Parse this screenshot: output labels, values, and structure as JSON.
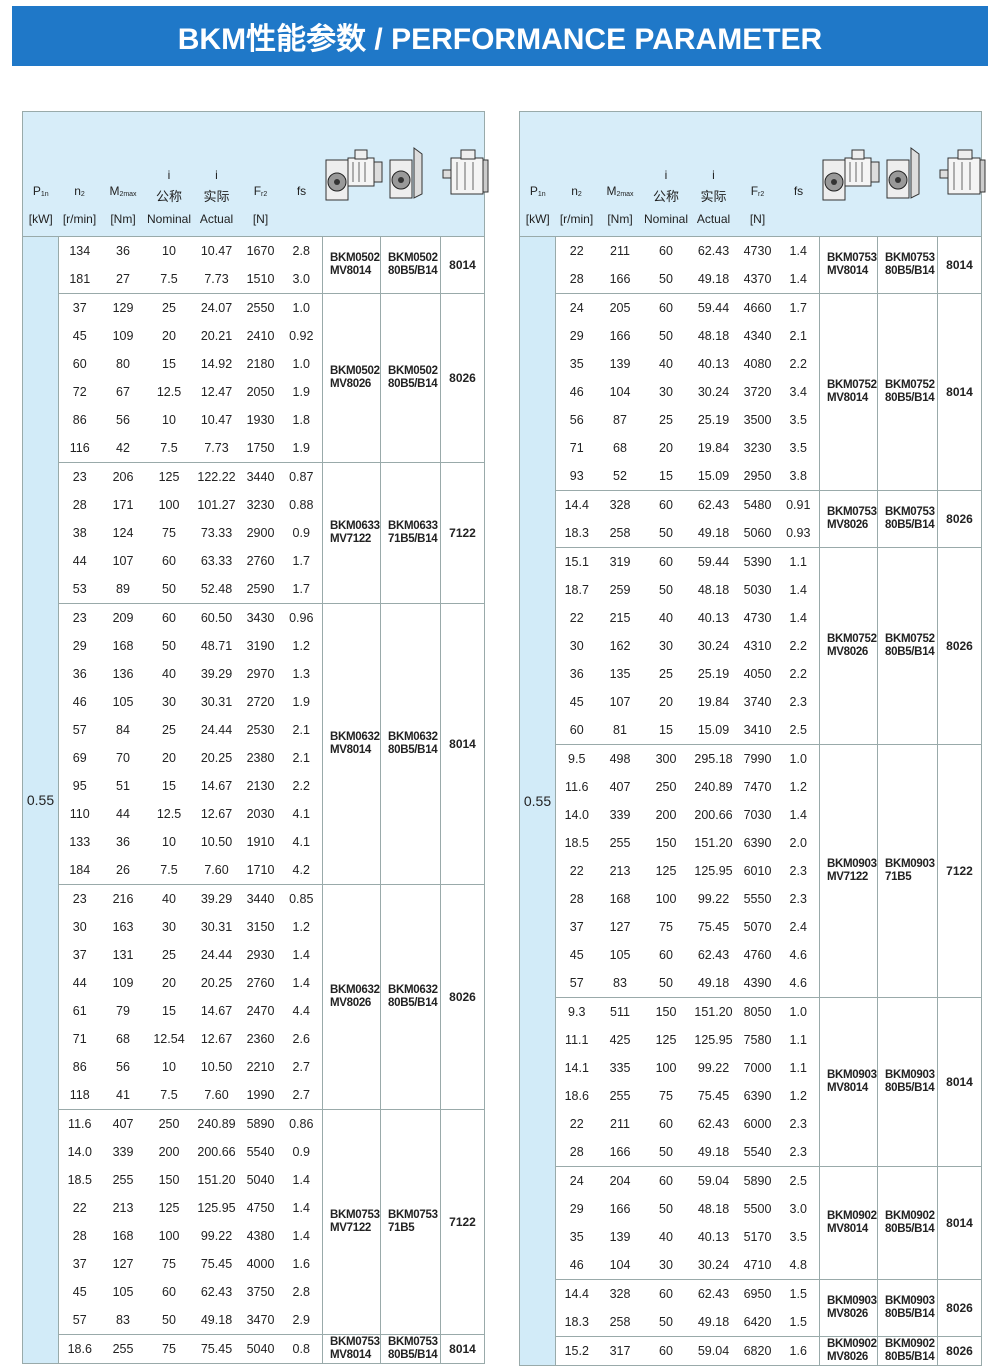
{
  "title": "BKM性能参数 / PERFORMANCE PARAMETER",
  "colors": {
    "banner": "#1f78c8",
    "header_bg": "#d7edf9",
    "power_col_bg": "#d2ebf8"
  },
  "header": {
    "p": {
      "main": "P",
      "sub": "1n",
      "unit": "[kW]"
    },
    "n2": {
      "main": "n",
      "sub": "2",
      "unit": "[r/min]"
    },
    "m2": {
      "main": "M",
      "sub": "2max",
      "unit": "[Nm]"
    },
    "i_nominal": {
      "top": "i",
      "cn": "公称",
      "en": "Nominal"
    },
    "i_actual": {
      "top": "i",
      "cn": "实际",
      "en": "Actual"
    },
    "fr2": {
      "main": "F",
      "sub": "r2",
      "unit": "[N]"
    },
    "fs": "fs",
    "icons": [
      "gearbox-with-motor-icon",
      "gearbox-with-flange-icon",
      "motor-icon"
    ]
  },
  "tables": [
    {
      "power": "0.55",
      "groups": [
        {
          "model1": [
            "BKM0502",
            "MV8014"
          ],
          "model2": [
            "BKM0502",
            "80B5/B14"
          ],
          "motor": "8014",
          "rows": [
            [
              "134",
              "36",
              "10",
              "10.47",
              "1670",
              "2.8"
            ],
            [
              "181",
              "27",
              "7.5",
              "7.73",
              "1510",
              "3.0"
            ]
          ]
        },
        {
          "model1": [
            "BKM0502",
            "MV8026"
          ],
          "model2": [
            "BKM0502",
            "80B5/B14"
          ],
          "motor": "8026",
          "rows": [
            [
              "37",
              "129",
              "25",
              "24.07",
              "2550",
              "1.0"
            ],
            [
              "45",
              "109",
              "20",
              "20.21",
              "2410",
              "0.92"
            ],
            [
              "60",
              "80",
              "15",
              "14.92",
              "2180",
              "1.0"
            ],
            [
              "72",
              "67",
              "12.5",
              "12.47",
              "2050",
              "1.9"
            ],
            [
              "86",
              "56",
              "10",
              "10.47",
              "1930",
              "1.8"
            ],
            [
              "116",
              "42",
              "7.5",
              "7.73",
              "1750",
              "1.9"
            ]
          ]
        },
        {
          "model1": [
            "BKM0633",
            "MV7122"
          ],
          "model2": [
            "BKM0633",
            "71B5/B14"
          ],
          "motor": "7122",
          "rows": [
            [
              "23",
              "206",
              "125",
              "122.22",
              "3440",
              "0.87"
            ],
            [
              "28",
              "171",
              "100",
              "101.27",
              "3230",
              "0.88"
            ],
            [
              "38",
              "124",
              "75",
              "73.33",
              "2900",
              "0.9"
            ],
            [
              "44",
              "107",
              "60",
              "63.33",
              "2760",
              "1.7"
            ],
            [
              "53",
              "89",
              "50",
              "52.48",
              "2590",
              "1.7"
            ]
          ]
        },
        {
          "model1": [
            "BKM0632",
            "MV8014"
          ],
          "model2": [
            "BKM0632",
            "80B5/B14"
          ],
          "motor": "8014",
          "rows": [
            [
              "23",
              "209",
              "60",
              "60.50",
              "3430",
              "0.96"
            ],
            [
              "29",
              "168",
              "50",
              "48.71",
              "3190",
              "1.2"
            ],
            [
              "36",
              "136",
              "40",
              "39.29",
              "2970",
              "1.3"
            ],
            [
              "46",
              "105",
              "30",
              "30.31",
              "2720",
              "1.9"
            ],
            [
              "57",
              "84",
              "25",
              "24.44",
              "2530",
              "2.1"
            ],
            [
              "69",
              "70",
              "20",
              "20.25",
              "2380",
              "2.1"
            ],
            [
              "95",
              "51",
              "15",
              "14.67",
              "2130",
              "2.2"
            ],
            [
              "110",
              "44",
              "12.5",
              "12.67",
              "2030",
              "4.1"
            ],
            [
              "133",
              "36",
              "10",
              "10.50",
              "1910",
              "4.1"
            ],
            [
              "184",
              "26",
              "7.5",
              "7.60",
              "1710",
              "4.2"
            ]
          ]
        },
        {
          "model1": [
            "BKM0632",
            "MV8026"
          ],
          "model2": [
            "BKM0632",
            "80B5/B14"
          ],
          "motor": "8026",
          "rows": [
            [
              "23",
              "216",
              "40",
              "39.29",
              "3440",
              "0.85"
            ],
            [
              "30",
              "163",
              "30",
              "30.31",
              "3150",
              "1.2"
            ],
            [
              "37",
              "131",
              "25",
              "24.44",
              "2930",
              "1.4"
            ],
            [
              "44",
              "109",
              "20",
              "20.25",
              "2760",
              "1.4"
            ],
            [
              "61",
              "79",
              "15",
              "14.67",
              "2470",
              "4.4"
            ],
            [
              "71",
              "68",
              "12.54",
              "12.67",
              "2360",
              "2.6"
            ],
            [
              "86",
              "56",
              "10",
              "10.50",
              "2210",
              "2.7"
            ],
            [
              "118",
              "41",
              "7.5",
              "7.60",
              "1990",
              "2.7"
            ]
          ]
        },
        {
          "model1": [
            "BKM0753",
            "MV7122"
          ],
          "model2": [
            "BKM0753",
            "71B5"
          ],
          "motor": "7122",
          "rows": [
            [
              "11.6",
              "407",
              "250",
              "240.89",
              "5890",
              "0.86"
            ],
            [
              "14.0",
              "339",
              "200",
              "200.66",
              "5540",
              "0.9"
            ],
            [
              "18.5",
              "255",
              "150",
              "151.20",
              "5040",
              "1.4"
            ],
            [
              "22",
              "213",
              "125",
              "125.95",
              "4750",
              "1.4"
            ],
            [
              "28",
              "168",
              "100",
              "99.22",
              "4380",
              "1.4"
            ],
            [
              "37",
              "127",
              "75",
              "75.45",
              "4000",
              "1.6"
            ],
            [
              "45",
              "105",
              "60",
              "62.43",
              "3750",
              "2.8"
            ],
            [
              "57",
              "83",
              "50",
              "49.18",
              "3470",
              "2.9"
            ]
          ]
        },
        {
          "model1": [
            "BKM0753",
            "MV8014"
          ],
          "model2": [
            "BKM0753",
            "80B5/B14"
          ],
          "motor": "8014",
          "rows": [
            [
              "18.6",
              "255",
              "75",
              "75.45",
              "5040",
              "0.8"
            ]
          ]
        }
      ]
    },
    {
      "power": "0.55",
      "groups": [
        {
          "model1": [
            "BKM0753",
            "MV8014"
          ],
          "model2": [
            "BKM0753",
            "80B5/B14"
          ],
          "motor": "8014",
          "rows": [
            [
              "22",
              "211",
              "60",
              "62.43",
              "4730",
              "1.4"
            ],
            [
              "28",
              "166",
              "50",
              "49.18",
              "4370",
              "1.4"
            ]
          ]
        },
        {
          "model1": [
            "BKM0752",
            "MV8014"
          ],
          "model2": [
            "BKM0752",
            "80B5/B14"
          ],
          "motor": "8014",
          "rows": [
            [
              "24",
              "205",
              "60",
              "59.44",
              "4660",
              "1.7"
            ],
            [
              "29",
              "166",
              "50",
              "48.18",
              "4340",
              "2.1"
            ],
            [
              "35",
              "139",
              "40",
              "40.13",
              "4080",
              "2.2"
            ],
            [
              "46",
              "104",
              "30",
              "30.24",
              "3720",
              "3.4"
            ],
            [
              "56",
              "87",
              "25",
              "25.19",
              "3500",
              "3.5"
            ],
            [
              "71",
              "68",
              "20",
              "19.84",
              "3230",
              "3.5"
            ],
            [
              "93",
              "52",
              "15",
              "15.09",
              "2950",
              "3.8"
            ]
          ]
        },
        {
          "model1": [
            "BKM0753",
            "MV8026"
          ],
          "model2": [
            "BKM0753",
            "80B5/B14"
          ],
          "motor": "8026",
          "rows": [
            [
              "14.4",
              "328",
              "60",
              "62.43",
              "5480",
              "0.91"
            ],
            [
              "18.3",
              "258",
              "50",
              "49.18",
              "5060",
              "0.93"
            ]
          ]
        },
        {
          "model1": [
            "BKM0752",
            "MV8026"
          ],
          "model2": [
            "BKM0752",
            "80B5/B14"
          ],
          "motor": "8026",
          "rows": [
            [
              "15.1",
              "319",
              "60",
              "59.44",
              "5390",
              "1.1"
            ],
            [
              "18.7",
              "259",
              "50",
              "48.18",
              "5030",
              "1.4"
            ],
            [
              "22",
              "215",
              "40",
              "40.13",
              "4730",
              "1.4"
            ],
            [
              "30",
              "162",
              "30",
              "30.24",
              "4310",
              "2.2"
            ],
            [
              "36",
              "135",
              "25",
              "25.19",
              "4050",
              "2.2"
            ],
            [
              "45",
              "107",
              "20",
              "19.84",
              "3740",
              "2.3"
            ],
            [
              "60",
              "81",
              "15",
              "15.09",
              "3410",
              "2.5"
            ]
          ]
        },
        {
          "model1": [
            "BKM0903",
            "MV7122"
          ],
          "model2": [
            "BKM0903",
            "71B5"
          ],
          "motor": "7122",
          "rows": [
            [
              "9.5",
              "498",
              "300",
              "295.18",
              "7990",
              "1.0"
            ],
            [
              "11.6",
              "407",
              "250",
              "240.89",
              "7470",
              "1.2"
            ],
            [
              "14.0",
              "339",
              "200",
              "200.66",
              "7030",
              "1.4"
            ],
            [
              "18.5",
              "255",
              "150",
              "151.20",
              "6390",
              "2.0"
            ],
            [
              "22",
              "213",
              "125",
              "125.95",
              "6010",
              "2.3"
            ],
            [
              "28",
              "168",
              "100",
              "99.22",
              "5550",
              "2.3"
            ],
            [
              "37",
              "127",
              "75",
              "75.45",
              "5070",
              "2.4"
            ],
            [
              "45",
              "105",
              "60",
              "62.43",
              "4760",
              "4.6"
            ],
            [
              "57",
              "83",
              "50",
              "49.18",
              "4390",
              "4.6"
            ]
          ]
        },
        {
          "model1": [
            "BKM0903",
            "MV8014"
          ],
          "model2": [
            "BKM0903",
            "80B5/B14"
          ],
          "motor": "8014",
          "rows": [
            [
              "9.3",
              "511",
              "150",
              "151.20",
              "8050",
              "1.0"
            ],
            [
              "11.1",
              "425",
              "125",
              "125.95",
              "7580",
              "1.1"
            ],
            [
              "14.1",
              "335",
              "100",
              "99.22",
              "7000",
              "1.1"
            ],
            [
              "18.6",
              "255",
              "75",
              "75.45",
              "6390",
              "1.2"
            ],
            [
              "22",
              "211",
              "60",
              "62.43",
              "6000",
              "2.3"
            ],
            [
              "28",
              "166",
              "50",
              "49.18",
              "5540",
              "2.3"
            ]
          ]
        },
        {
          "model1": [
            "BKM0902",
            "MV8014"
          ],
          "model2": [
            "BKM0902",
            "80B5/B14"
          ],
          "motor": "8014",
          "rows": [
            [
              "24",
              "204",
              "60",
              "59.04",
              "5890",
              "2.5"
            ],
            [
              "29",
              "166",
              "50",
              "48.18",
              "5500",
              "3.0"
            ],
            [
              "35",
              "139",
              "40",
              "40.13",
              "5170",
              "3.5"
            ],
            [
              "46",
              "104",
              "30",
              "30.24",
              "4710",
              "4.8"
            ]
          ]
        },
        {
          "model1": [
            "BKM0903",
            "MV8026"
          ],
          "model2": [
            "BKM0903",
            "80B5/B14"
          ],
          "motor": "8026",
          "rows": [
            [
              "14.4",
              "328",
              "60",
              "62.43",
              "6950",
              "1.5"
            ],
            [
              "18.3",
              "258",
              "50",
              "49.18",
              "6420",
              "1.5"
            ]
          ]
        },
        {
          "model1": [
            "BKM0902",
            "MV8026"
          ],
          "model2": [
            "BKM0902",
            "80B5/B14"
          ],
          "motor": "8026",
          "rows": [
            [
              "15.2",
              "317",
              "60",
              "59.04",
              "6820",
              "1.6"
            ]
          ]
        }
      ]
    }
  ]
}
